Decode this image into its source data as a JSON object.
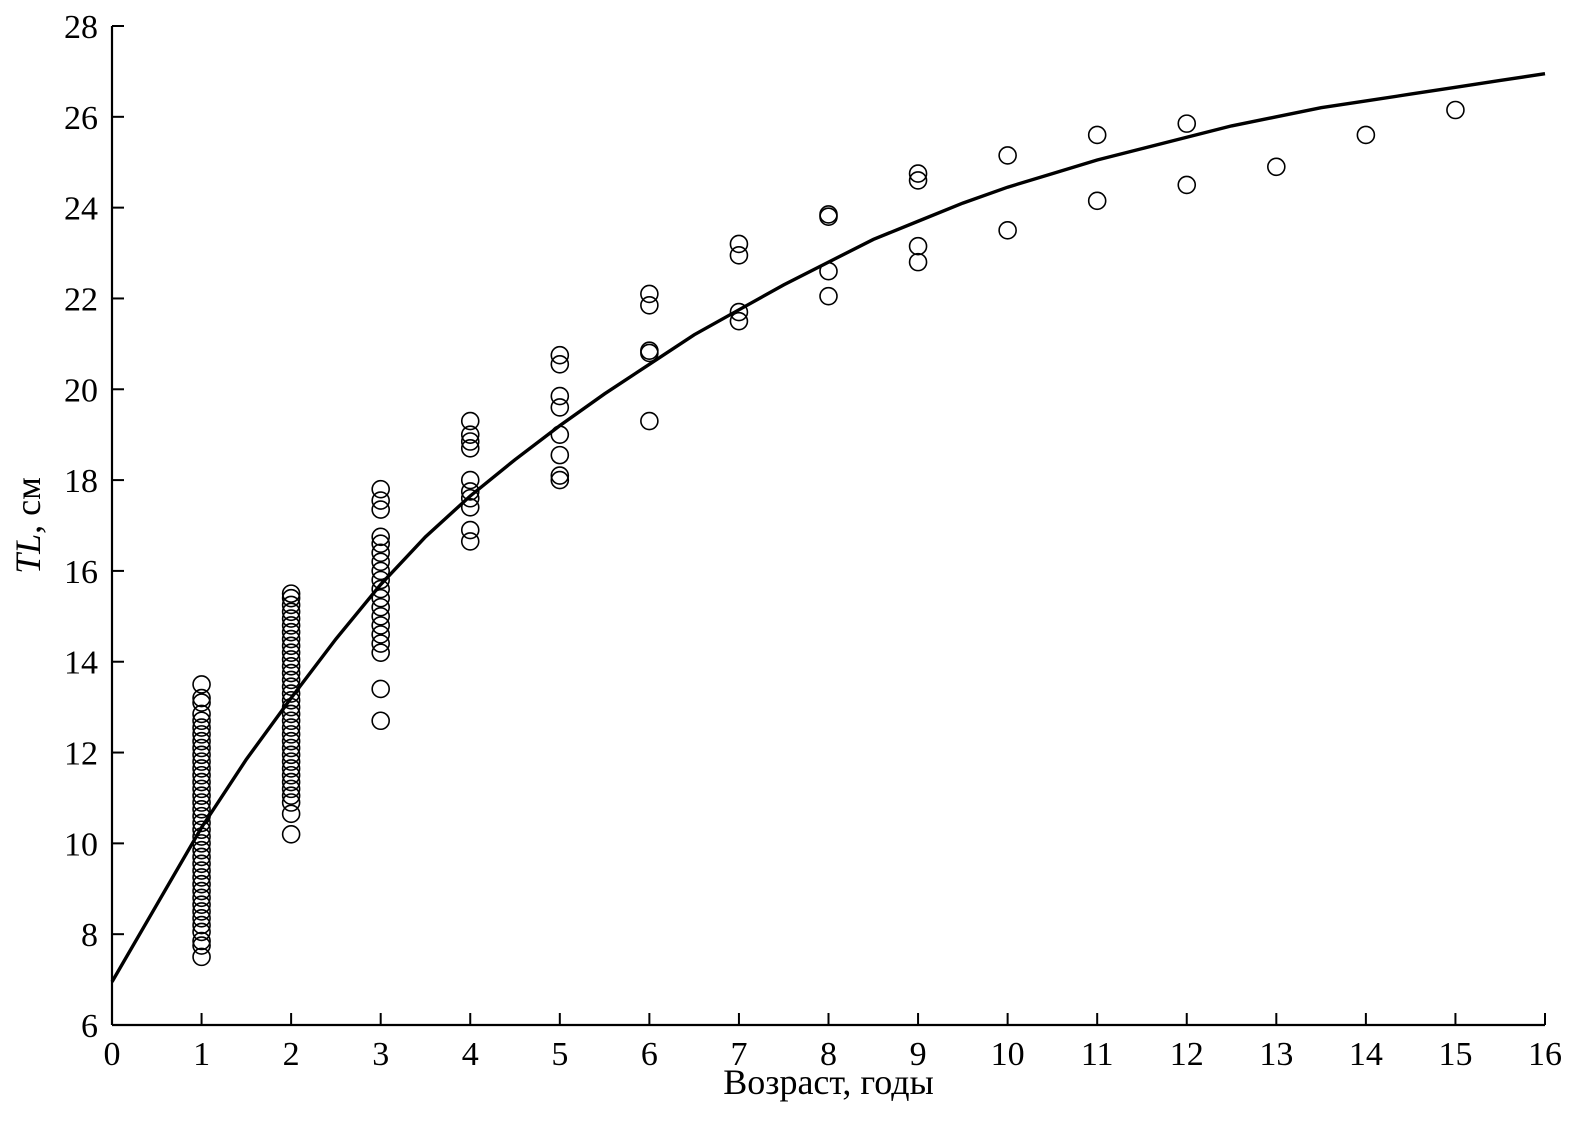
{
  "chart_data": {
    "type": "scatter",
    "xlabel": "Возраст, годы",
    "ylabel_italic": "TL",
    "ylabel_rest": ", см",
    "xlim": [
      0,
      16
    ],
    "ylim": [
      6,
      28
    ],
    "xticks": [
      0,
      1,
      2,
      3,
      4,
      5,
      6,
      7,
      8,
      9,
      10,
      11,
      12,
      13,
      14,
      15,
      16
    ],
    "yticks": [
      6,
      8,
      10,
      12,
      14,
      16,
      18,
      20,
      22,
      24,
      26,
      28
    ],
    "grid": false,
    "series": [
      {
        "marker": "open-circle",
        "points": [
          {
            "x": 1,
            "y": 7.5
          },
          {
            "x": 1,
            "y": 7.75
          },
          {
            "x": 1,
            "y": 7.85
          },
          {
            "x": 1,
            "y": 8.05
          },
          {
            "x": 1,
            "y": 8.2
          },
          {
            "x": 1,
            "y": 8.35
          },
          {
            "x": 1,
            "y": 8.5
          },
          {
            "x": 1,
            "y": 8.65
          },
          {
            "x": 1,
            "y": 8.8
          },
          {
            "x": 1,
            "y": 8.95
          },
          {
            "x": 1,
            "y": 9.1
          },
          {
            "x": 1,
            "y": 9.25
          },
          {
            "x": 1,
            "y": 9.4
          },
          {
            "x": 1,
            "y": 9.55
          },
          {
            "x": 1,
            "y": 9.7
          },
          {
            "x": 1,
            "y": 9.85
          },
          {
            "x": 1,
            "y": 10.0
          },
          {
            "x": 1,
            "y": 10.15
          },
          {
            "x": 1,
            "y": 10.3
          },
          {
            "x": 1,
            "y": 10.45
          },
          {
            "x": 1,
            "y": 10.6
          },
          {
            "x": 1,
            "y": 10.75
          },
          {
            "x": 1,
            "y": 10.9
          },
          {
            "x": 1,
            "y": 11.05
          },
          {
            "x": 1,
            "y": 11.2
          },
          {
            "x": 1,
            "y": 11.35
          },
          {
            "x": 1,
            "y": 11.5
          },
          {
            "x": 1,
            "y": 11.65
          },
          {
            "x": 1,
            "y": 11.8
          },
          {
            "x": 1,
            "y": 11.95
          },
          {
            "x": 1,
            "y": 12.1
          },
          {
            "x": 1,
            "y": 12.25
          },
          {
            "x": 1,
            "y": 12.4
          },
          {
            "x": 1,
            "y": 12.55
          },
          {
            "x": 1,
            "y": 12.7
          },
          {
            "x": 1,
            "y": 12.85
          },
          {
            "x": 1,
            "y": 13.1
          },
          {
            "x": 1,
            "y": 13.2
          },
          {
            "x": 1,
            "y": 13.5
          },
          {
            "x": 2,
            "y": 10.2
          },
          {
            "x": 2,
            "y": 10.65
          },
          {
            "x": 2,
            "y": 10.9
          },
          {
            "x": 2,
            "y": 11.05
          },
          {
            "x": 2,
            "y": 11.2
          },
          {
            "x": 2,
            "y": 11.35
          },
          {
            "x": 2,
            "y": 11.5
          },
          {
            "x": 2,
            "y": 11.65
          },
          {
            "x": 2,
            "y": 11.8
          },
          {
            "x": 2,
            "y": 11.95
          },
          {
            "x": 2,
            "y": 12.1
          },
          {
            "x": 2,
            "y": 12.25
          },
          {
            "x": 2,
            "y": 12.4
          },
          {
            "x": 2,
            "y": 12.55
          },
          {
            "x": 2,
            "y": 12.7
          },
          {
            "x": 2,
            "y": 12.85
          },
          {
            "x": 2,
            "y": 13.0
          },
          {
            "x": 2,
            "y": 13.15
          },
          {
            "x": 2,
            "y": 13.3
          },
          {
            "x": 2,
            "y": 13.45
          },
          {
            "x": 2,
            "y": 13.6
          },
          {
            "x": 2,
            "y": 13.75
          },
          {
            "x": 2,
            "y": 13.9
          },
          {
            "x": 2,
            "y": 14.05
          },
          {
            "x": 2,
            "y": 14.2
          },
          {
            "x": 2,
            "y": 14.35
          },
          {
            "x": 2,
            "y": 14.5
          },
          {
            "x": 2,
            "y": 14.65
          },
          {
            "x": 2,
            "y": 14.8
          },
          {
            "x": 2,
            "y": 14.95
          },
          {
            "x": 2,
            "y": 15.1
          },
          {
            "x": 2,
            "y": 15.25
          },
          {
            "x": 2,
            "y": 15.4
          },
          {
            "x": 2,
            "y": 15.5
          },
          {
            "x": 3,
            "y": 12.7
          },
          {
            "x": 3,
            "y": 13.4
          },
          {
            "x": 3,
            "y": 14.2
          },
          {
            "x": 3,
            "y": 14.4
          },
          {
            "x": 3,
            "y": 14.6
          },
          {
            "x": 3,
            "y": 14.8
          },
          {
            "x": 3,
            "y": 15.0
          },
          {
            "x": 3,
            "y": 15.2
          },
          {
            "x": 3,
            "y": 15.4
          },
          {
            "x": 3,
            "y": 15.6
          },
          {
            "x": 3,
            "y": 15.8
          },
          {
            "x": 3,
            "y": 16.0
          },
          {
            "x": 3,
            "y": 16.2
          },
          {
            "x": 3,
            "y": 16.4
          },
          {
            "x": 3,
            "y": 16.6
          },
          {
            "x": 3,
            "y": 16.75
          },
          {
            "x": 3,
            "y": 17.35
          },
          {
            "x": 3,
            "y": 17.55
          },
          {
            "x": 3,
            "y": 17.8
          },
          {
            "x": 4,
            "y": 16.65
          },
          {
            "x": 4,
            "y": 16.9
          },
          {
            "x": 4,
            "y": 17.4
          },
          {
            "x": 4,
            "y": 17.6
          },
          {
            "x": 4,
            "y": 17.75
          },
          {
            "x": 4,
            "y": 18.0
          },
          {
            "x": 4,
            "y": 18.7
          },
          {
            "x": 4,
            "y": 18.85
          },
          {
            "x": 4,
            "y": 19.0
          },
          {
            "x": 4,
            "y": 19.3
          },
          {
            "x": 5,
            "y": 18.0
          },
          {
            "x": 5,
            "y": 18.1
          },
          {
            "x": 5,
            "y": 18.55
          },
          {
            "x": 5,
            "y": 19.0
          },
          {
            "x": 5,
            "y": 19.6
          },
          {
            "x": 5,
            "y": 19.85
          },
          {
            "x": 5,
            "y": 20.55
          },
          {
            "x": 5,
            "y": 20.75
          },
          {
            "x": 6,
            "y": 19.3
          },
          {
            "x": 6,
            "y": 20.8
          },
          {
            "x": 6,
            "y": 20.85
          },
          {
            "x": 6,
            "y": 21.85
          },
          {
            "x": 6,
            "y": 22.1
          },
          {
            "x": 7,
            "y": 21.5
          },
          {
            "x": 7,
            "y": 21.7
          },
          {
            "x": 7,
            "y": 22.95
          },
          {
            "x": 7,
            "y": 23.2
          },
          {
            "x": 8,
            "y": 22.05
          },
          {
            "x": 8,
            "y": 22.6
          },
          {
            "x": 8,
            "y": 23.8
          },
          {
            "x": 8,
            "y": 23.85
          },
          {
            "x": 9,
            "y": 22.8
          },
          {
            "x": 9,
            "y": 23.15
          },
          {
            "x": 9,
            "y": 24.6
          },
          {
            "x": 9,
            "y": 24.75
          },
          {
            "x": 10,
            "y": 23.5
          },
          {
            "x": 10,
            "y": 25.15
          },
          {
            "x": 11,
            "y": 24.15
          },
          {
            "x": 11,
            "y": 25.6
          },
          {
            "x": 12,
            "y": 24.5
          },
          {
            "x": 12,
            "y": 25.85
          },
          {
            "x": 13,
            "y": 24.9
          },
          {
            "x": 14,
            "y": 25.6
          },
          {
            "x": 15,
            "y": 26.15
          }
        ]
      },
      {
        "type": "line",
        "x": [
          0,
          0.5,
          1,
          1.5,
          2,
          2.5,
          3,
          3.5,
          4,
          4.5,
          5,
          5.5,
          6,
          6.5,
          7,
          7.5,
          8,
          8.5,
          9,
          9.5,
          10,
          10.5,
          11,
          11.5,
          12,
          12.5,
          13,
          13.5,
          14,
          14.5,
          15,
          15.5,
          16
        ],
        "y": [
          6.95,
          8.65,
          10.35,
          11.85,
          13.2,
          14.5,
          15.7,
          16.75,
          17.65,
          18.45,
          19.2,
          19.9,
          20.55,
          21.2,
          21.75,
          22.3,
          22.8,
          23.3,
          23.7,
          24.1,
          24.45,
          24.75,
          25.05,
          25.3,
          25.55,
          25.8,
          26.0,
          26.2,
          26.35,
          26.5,
          26.65,
          26.8,
          26.95
        ]
      }
    ]
  }
}
